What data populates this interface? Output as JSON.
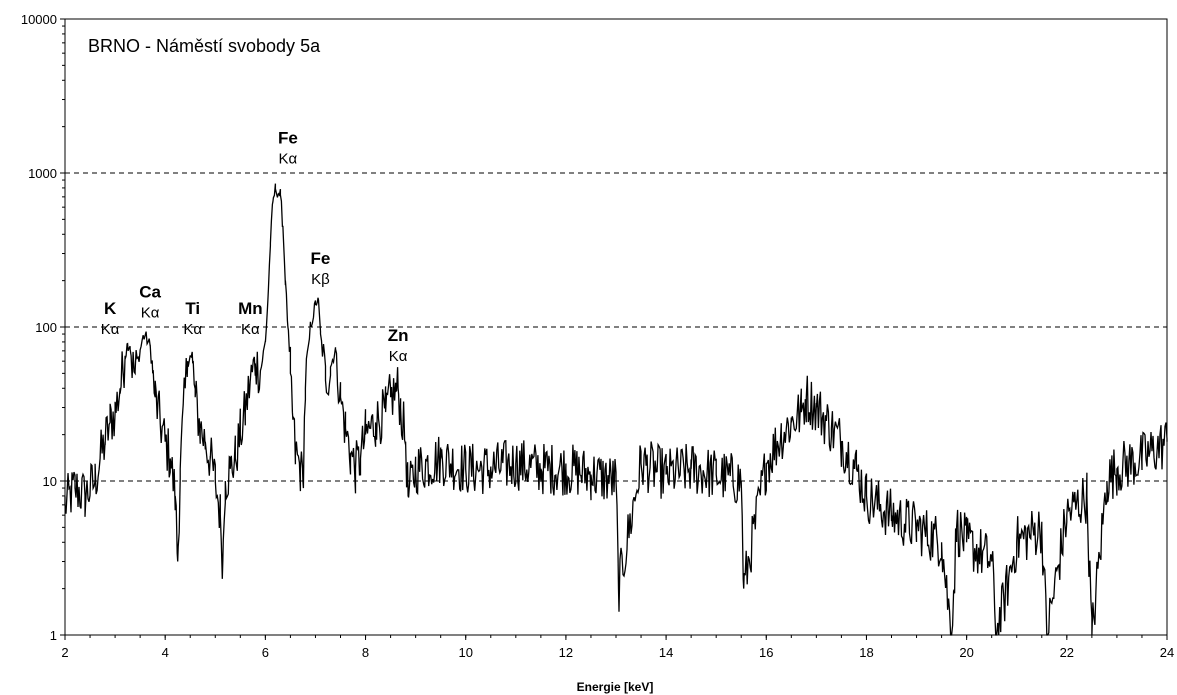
{
  "chart_data": {
    "type": "line",
    "title": "BRNO - Náměstí svobody 5a",
    "xlabel": "Energie [keV]",
    "ylabel": "",
    "xlim": [
      2,
      24
    ],
    "ylim": [
      1,
      10000
    ],
    "y_scale": "log",
    "x_ticks": [
      "2",
      "4",
      "6",
      "8",
      "10",
      "12",
      "14",
      "16",
      "18",
      "20",
      "22",
      "24"
    ],
    "y_ticks": [
      "1",
      "10",
      "100",
      "1000",
      "10000"
    ],
    "grid": "horizontal dashed at 10, 100, 1000",
    "legend": "none",
    "line_color": "#000000",
    "series": [
      {
        "x": [
          2.0,
          2.2,
          2.4,
          2.6,
          2.7,
          2.8,
          2.9,
          3.0,
          3.1,
          3.2,
          3.25,
          3.3,
          3.35,
          3.4,
          3.5,
          3.55,
          3.6,
          3.7,
          3.75,
          3.8,
          3.9,
          4.0,
          4.1,
          4.2,
          4.25,
          4.3,
          4.4,
          4.45,
          4.5,
          4.55,
          4.6,
          4.7,
          4.8,
          4.9,
          5.0,
          5.1,
          5.15,
          5.2,
          5.3,
          5.4,
          5.5,
          5.6,
          5.7,
          5.8,
          5.9,
          6.0,
          6.05,
          6.1,
          6.15,
          6.2,
          6.3,
          6.35,
          6.4,
          6.45,
          6.5,
          6.55,
          6.6,
          6.7,
          6.75,
          6.8,
          6.9,
          7.0,
          7.05,
          7.1,
          7.2,
          7.3,
          7.4,
          7.5,
          7.6,
          7.7,
          7.8,
          7.9,
          8.0,
          8.2,
          8.4,
          8.5,
          8.6,
          8.65,
          8.7,
          8.8,
          8.85,
          9.0,
          9.5,
          10.0,
          10.5,
          11.0,
          11.5,
          12.0,
          12.5,
          13.0,
          13.05,
          13.5,
          14.0,
          14.5,
          15.0,
          15.5,
          15.55,
          16.0,
          16.3,
          16.5,
          16.7,
          16.8,
          17.0,
          17.3,
          17.5,
          17.8,
          18.0,
          18.5,
          19.0,
          19.5,
          19.7,
          19.8,
          20.0,
          20.5,
          20.6,
          21.0,
          21.5,
          21.6,
          22.0,
          22.4,
          22.5,
          22.8,
          23.0,
          23.5,
          24.0
        ],
        "values": [
          7,
          9,
          8,
          10,
          14,
          18,
          24,
          28,
          40,
          65,
          78,
          75,
          55,
          50,
          70,
          85,
          88,
          75,
          50,
          35,
          24,
          18,
          14,
          8,
          3,
          12,
          40,
          60,
          65,
          58,
          35,
          22,
          18,
          14,
          10,
          6,
          3,
          10,
          12,
          14,
          20,
          28,
          45,
          58,
          52,
          80,
          150,
          350,
          650,
          790,
          720,
          450,
          200,
          100,
          50,
          25,
          15,
          12,
          10,
          40,
          100,
          140,
          155,
          90,
          45,
          55,
          72,
          35,
          22,
          15,
          12,
          14,
          20,
          24,
          28,
          35,
          38,
          40,
          30,
          18,
          8,
          12,
          14,
          12,
          12,
          13,
          12,
          12,
          11,
          10,
          2,
          13,
          11,
          12,
          11,
          10,
          2,
          13,
          20,
          24,
          28,
          35,
          30,
          22,
          18,
          12,
          8,
          6,
          5,
          4,
          1,
          5,
          4,
          3,
          1,
          4,
          5,
          1,
          6,
          8,
          1,
          10,
          12,
          14,
          18
        ]
      }
    ],
    "annotations": [
      {
        "element": "K",
        "line": "Kα",
        "x": 2.9,
        "y": 90
      },
      {
        "element": "Ca",
        "line": "Kα",
        "x": 3.7,
        "y": 115
      },
      {
        "element": "Ti",
        "line": "Kα",
        "x": 4.55,
        "y": 90
      },
      {
        "element": "Mn",
        "line": "Kα",
        "x": 5.7,
        "y": 90
      },
      {
        "element": "Fe",
        "line": "Kα",
        "x": 6.45,
        "y": 1150
      },
      {
        "element": "Fe",
        "line": "Kβ",
        "x": 7.1,
        "y": 190
      },
      {
        "element": "Zn",
        "line": "Kα",
        "x": 8.65,
        "y": 60
      }
    ]
  }
}
